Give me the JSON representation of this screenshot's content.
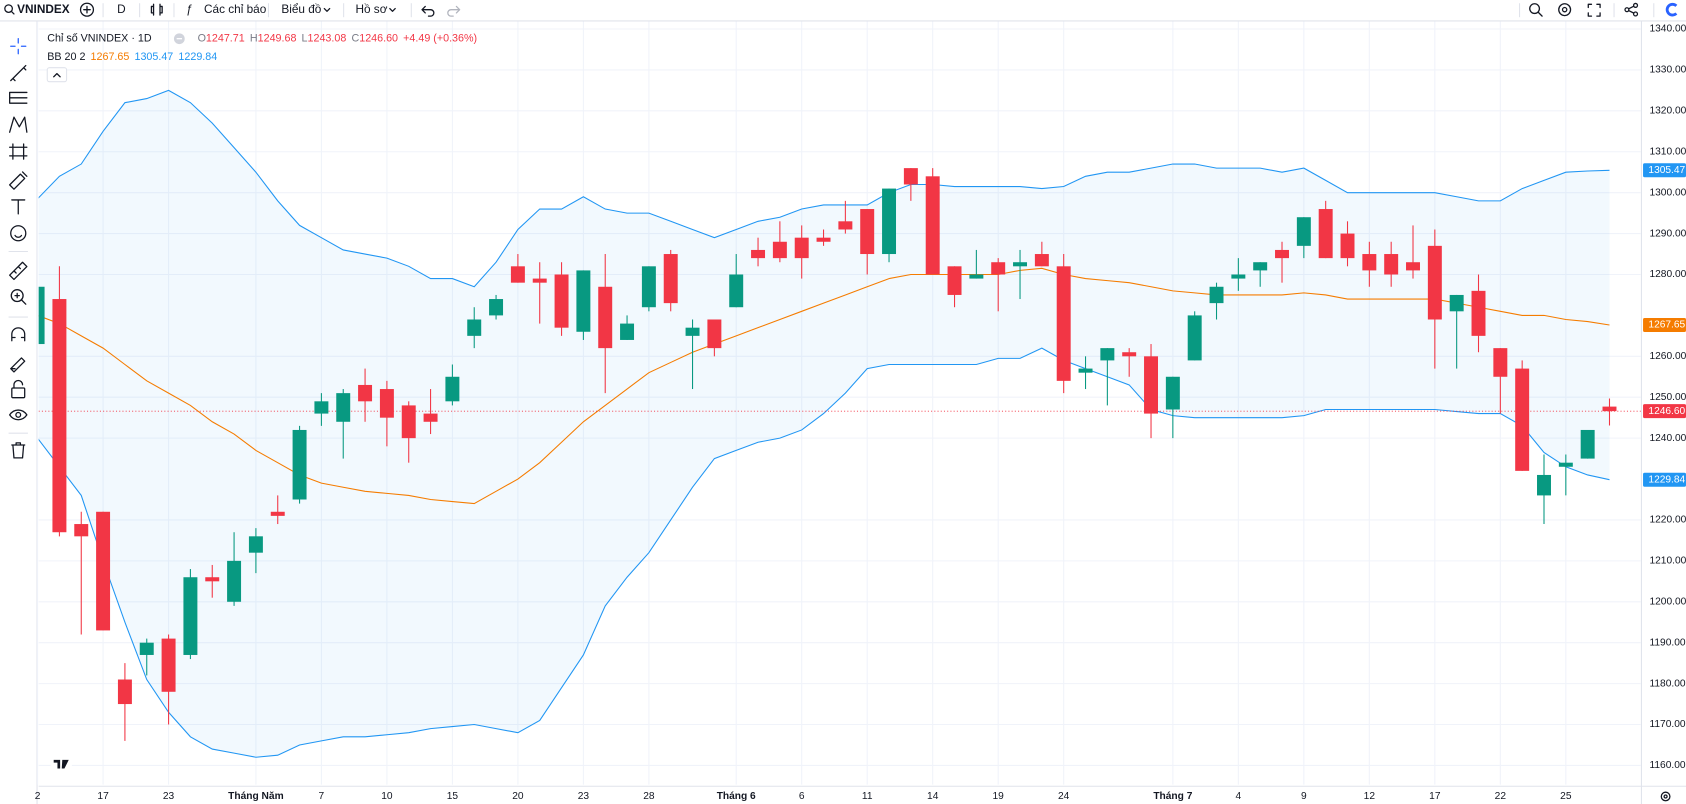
{
  "toolbar": {
    "symbol": "VNINDEX",
    "interval": "D",
    "indicators": "Các chỉ báo",
    "chart_type": "Biểu đồ",
    "profile": "Hồ sơ"
  },
  "chart_data": {
    "type": "candlestick",
    "title": "Chỉ số VNINDEX · 1D",
    "ohlc_letters": [
      "O",
      "H",
      "L",
      "C"
    ],
    "close_label": "1246.60",
    "change": "+4.49 (+0.36%)",
    "up_color": "#089981",
    "down_color": "#f23645",
    "categories": [
      "2",
      null,
      null,
      "17",
      null,
      null,
      "23",
      null,
      null,
      null,
      "Tháng Năm",
      null,
      null,
      "7",
      null,
      null,
      "10",
      null,
      null,
      "15",
      null,
      null,
      "20",
      null,
      null,
      "23",
      null,
      null,
      "28",
      null,
      null,
      null,
      "Tháng 6",
      null,
      null,
      "6",
      null,
      null,
      "11",
      null,
      null,
      "14",
      null,
      null,
      "19",
      null,
      null,
      "24",
      null,
      null,
      null,
      null,
      "Tháng 7",
      null,
      null,
      "4",
      null,
      null,
      "9",
      null,
      null,
      "12",
      null,
      null,
      "17",
      null,
      null,
      "22",
      null,
      null,
      "25",
      null,
      null
    ],
    "open": [
      1263,
      1274,
      1219,
      1222,
      1181,
      1187,
      1191,
      1187,
      1206,
      1200,
      1212,
      1222,
      1225,
      1246,
      1244,
      1253,
      1252,
      1248,
      1246,
      1249,
      1265,
      1270,
      1282,
      1279,
      1280,
      1266,
      1277,
      1264,
      1272,
      1285,
      1265,
      1269,
      1272,
      1286,
      1288,
      1289,
      1289,
      1293,
      1296,
      1285,
      1306,
      1304,
      1282,
      1279,
      1283,
      1282,
      1285,
      1282,
      1256,
      1259,
      1261,
      1260,
      1247,
      1259,
      1273,
      1279,
      1281,
      1286,
      1287,
      1296,
      1290,
      1285,
      1285,
      1283,
      1287,
      1271,
      1276,
      1262,
      1257,
      1226,
      1233,
      1235,
      1247.71
    ],
    "high": [
      1277,
      1282,
      1222,
      1222,
      1185,
      1191,
      1192,
      1208,
      1209,
      1217,
      1218,
      1226,
      1243,
      1251,
      1252,
      1257,
      1254,
      1249,
      1252,
      1258,
      1272,
      1275,
      1285,
      1283,
      1283,
      1281,
      1285,
      1270,
      1282,
      1286,
      1269,
      1269,
      1285,
      1289,
      1293,
      1292,
      1291,
      1298,
      1296,
      1301,
      1306,
      1306,
      1282,
      1286,
      1284,
      1286,
      1288,
      1285,
      1260,
      1262,
      1262,
      1263,
      1255,
      1271,
      1278,
      1284,
      1283,
      1288,
      1294,
      1298,
      1293,
      1288,
      1288,
      1292,
      1291,
      1275,
      1280,
      1262,
      1259,
      1236,
      1236,
      1242,
      1249.68
    ],
    "low": [
      1262,
      1216,
      1192,
      1193,
      1166,
      1182,
      1170,
      1186,
      1201,
      1199,
      1207,
      1219,
      1224,
      1243,
      1235,
      1244,
      1238,
      1234,
      1241,
      1248,
      1262,
      1269,
      1278,
      1268,
      1265,
      1264,
      1251,
      1264,
      1271,
      1271,
      1252,
      1260,
      1272,
      1282,
      1283,
      1279,
      1287,
      1290,
      1280,
      1283,
      1298,
      1280,
      1272,
      1279,
      1271,
      1274,
      1282,
      1251,
      1252,
      1248,
      1255,
      1240,
      1240,
      1259,
      1269,
      1276,
      1277,
      1278,
      1284,
      1284,
      1282,
      1277,
      1277,
      1279,
      1257,
      1257,
      1261,
      1246,
      1232,
      1219,
      1226,
      1235,
      1243.08
    ],
    "close": [
      1277,
      1217,
      1216,
      1193,
      1175,
      1190,
      1178,
      1206,
      1205,
      1210,
      1216,
      1221,
      1242,
      1249,
      1251,
      1249,
      1245,
      1240,
      1244,
      1255,
      1269,
      1274,
      1278,
      1278,
      1267,
      1281,
      1262,
      1268,
      1282,
      1273,
      1267,
      1262,
      1280,
      1284,
      1284,
      1284,
      1288,
      1291,
      1285,
      1301,
      1302,
      1280,
      1275,
      1280,
      1280,
      1283,
      1282,
      1254,
      1257,
      1262,
      1260,
      1246,
      1255,
      1270,
      1277,
      1280,
      1283,
      1284,
      1294,
      1284,
      1284,
      1281,
      1280,
      1281,
      1269,
      1275,
      1265,
      1255,
      1232,
      1231,
      1234,
      1242,
      1246.6
    ],
    "bands": {
      "name": "BB 20 2",
      "band_color": "#2196f3",
      "basis_color": "#f57c00",
      "upper": [
        1298.5,
        1304,
        1307,
        1315,
        1322,
        1323,
        1325,
        1322,
        1317,
        1311,
        1305,
        1298,
        1292,
        1289,
        1286,
        1285,
        1284,
        1282,
        1279,
        1279,
        1277,
        1283,
        1291,
        1296,
        1296,
        1299,
        1296,
        1295,
        1295,
        1293,
        1291,
        1289,
        1291,
        1293,
        1294,
        1296,
        1297,
        1297,
        1297,
        1300,
        1302,
        1302,
        1301.5,
        1301.5,
        1301.5,
        1301.5,
        1301,
        1301.5,
        1304,
        1305,
        1305,
        1306,
        1307,
        1307,
        1306,
        1306,
        1306,
        1305,
        1306,
        1303,
        1300,
        1300,
        1300,
        1300,
        1300,
        1299,
        1298,
        1298,
        1301,
        1303,
        1305,
        1305.3,
        1305.47
      ],
      "basis": [
        1270,
        1268,
        1265,
        1262,
        1258,
        1254,
        1251,
        1248,
        1244,
        1241,
        1237,
        1234,
        1231,
        1229,
        1228,
        1227,
        1226.5,
        1226,
        1225,
        1224.5,
        1224,
        1227,
        1230,
        1234,
        1239,
        1244,
        1248,
        1252,
        1256,
        1258.5,
        1261,
        1263,
        1265,
        1267,
        1269,
        1271,
        1273,
        1275,
        1277,
        1279,
        1280,
        1280,
        1280,
        1280,
        1280,
        1281,
        1281.5,
        1280,
        1279,
        1278.5,
        1278,
        1277,
        1276,
        1275.5,
        1275,
        1275,
        1275,
        1275,
        1275.5,
        1275,
        1274,
        1274,
        1274,
        1274,
        1274,
        1273,
        1272,
        1271,
        1270,
        1270,
        1269,
        1268.5,
        1267.65
      ],
      "lower": [
        1240,
        1233,
        1226,
        1210,
        1195,
        1181,
        1173,
        1167,
        1164,
        1163,
        1162,
        1162.5,
        1165,
        1166,
        1167,
        1167,
        1167.5,
        1168,
        1169,
        1169.5,
        1170,
        1169,
        1168,
        1171,
        1179,
        1187,
        1199,
        1206,
        1212,
        1220,
        1228,
        1235,
        1237,
        1239,
        1240,
        1242,
        1246,
        1251,
        1257,
        1258,
        1258,
        1258,
        1258,
        1258,
        1259.5,
        1259.5,
        1262,
        1259,
        1257,
        1255,
        1253,
        1247,
        1245.5,
        1245,
        1245,
        1245,
        1245,
        1245,
        1245.5,
        1247,
        1247,
        1247,
        1247,
        1247,
        1247,
        1246.5,
        1246,
        1246,
        1243,
        1236.5,
        1233,
        1231,
        1229.84
      ]
    },
    "ylim": [
      1155.3,
      1341.84
    ],
    "yticks": [
      {
        "value": 1160,
        "label": "1160.00"
      },
      {
        "value": 1170,
        "label": "1170.00"
      },
      {
        "value": 1180,
        "label": "1180.00"
      },
      {
        "value": 1190,
        "label": "1190.00"
      },
      {
        "value": 1200,
        "label": "1200.00"
      },
      {
        "value": 1210,
        "label": "1210.00"
      },
      {
        "value": 1220,
        "label": "1220.00"
      },
      {
        "value": 1240,
        "label": "1240.00"
      },
      {
        "value": 1250,
        "label": "1250.00"
      },
      {
        "value": 1260,
        "label": "1260.00"
      },
      {
        "value": 1280,
        "label": "1280.00"
      },
      {
        "value": 1290,
        "label": "1290.00"
      },
      {
        "value": 1300,
        "label": "1300.00"
      },
      {
        "value": 1310,
        "label": "1310.00"
      },
      {
        "value": 1320,
        "label": "1320.00"
      },
      {
        "value": 1330,
        "label": "1330.00"
      },
      {
        "value": 1340,
        "label": "1340.00"
      }
    ],
    "grid": true
  }
}
